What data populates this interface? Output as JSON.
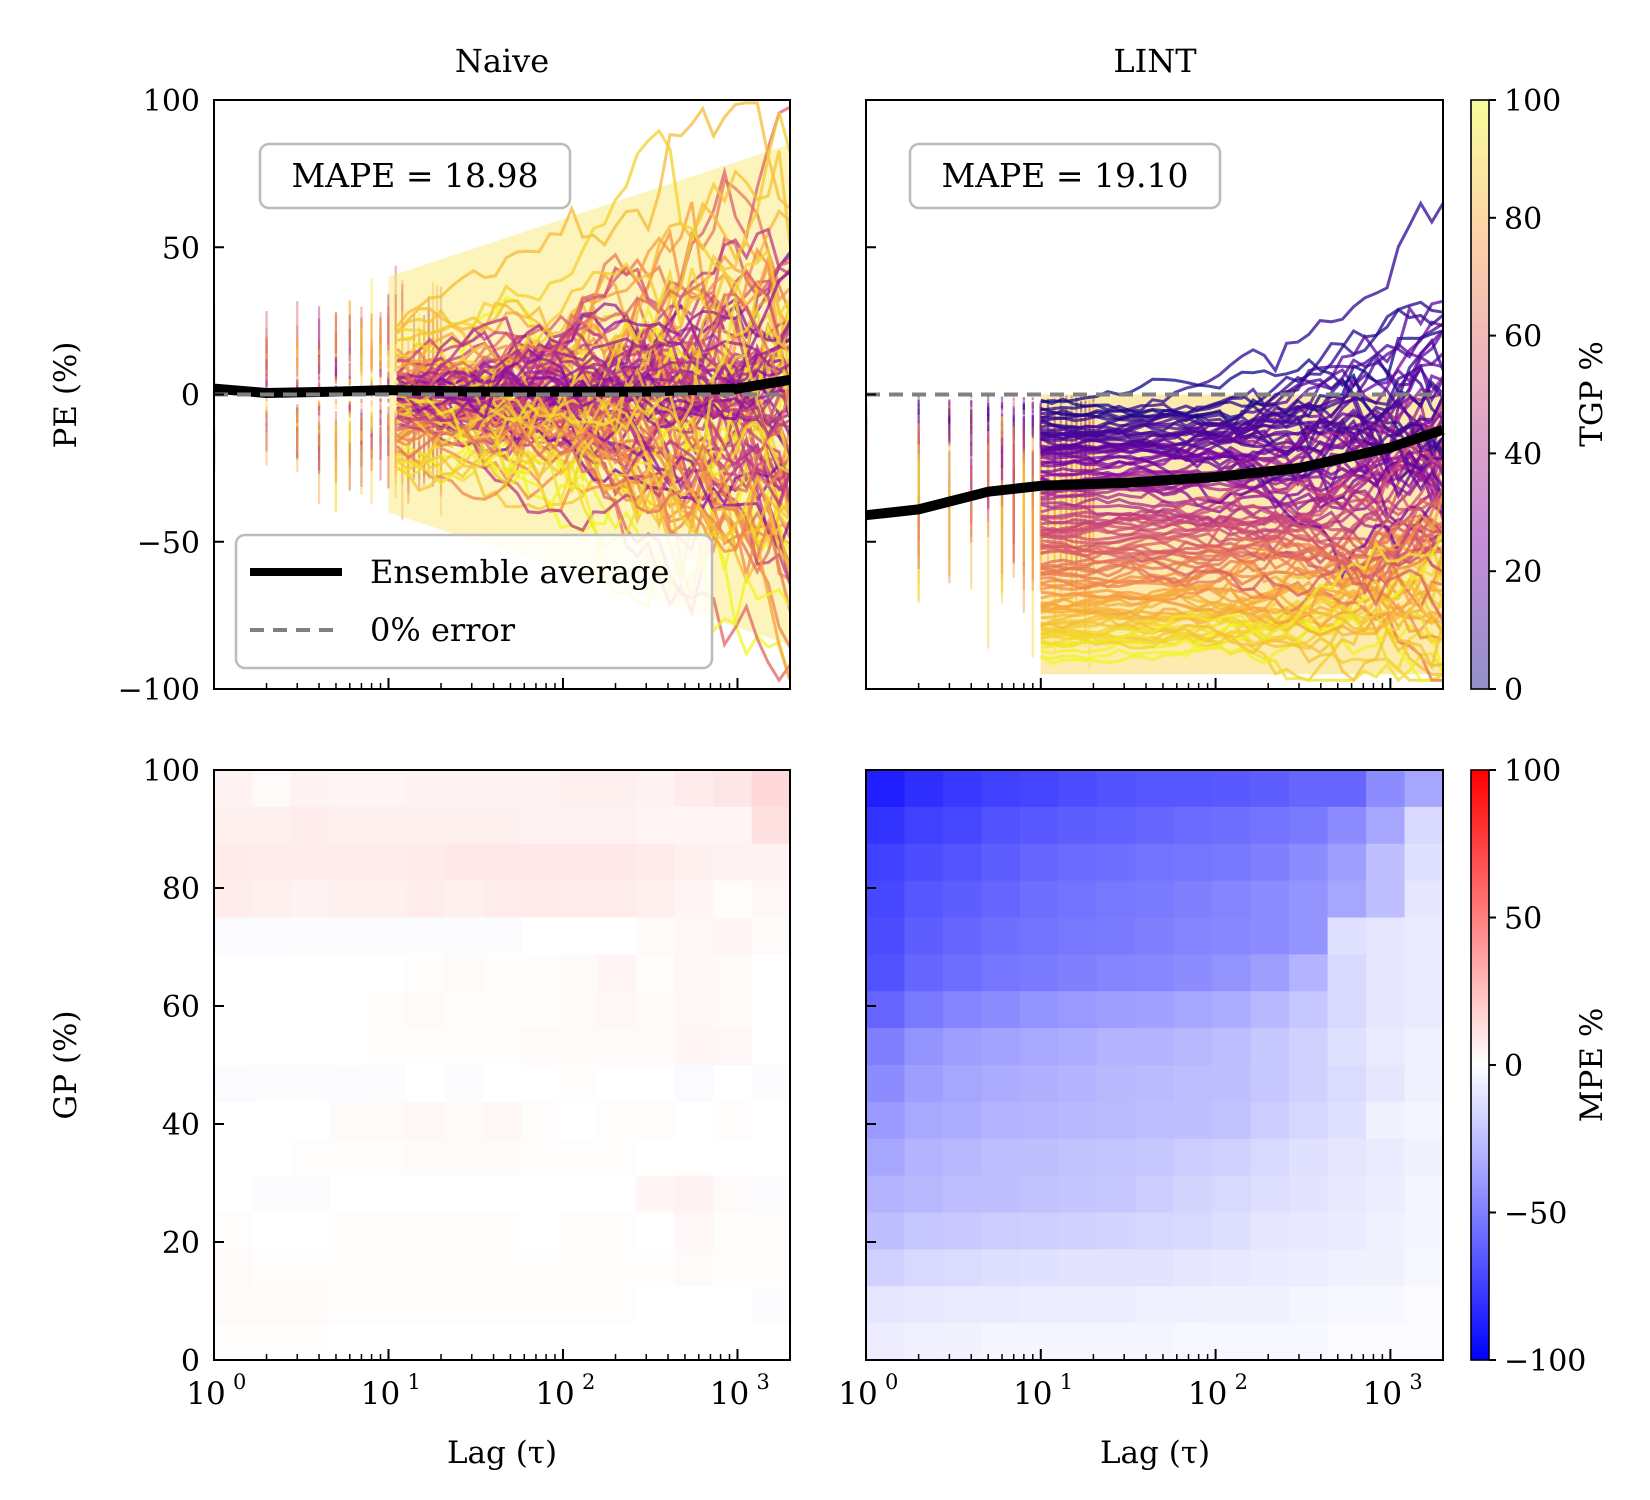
{
  "chart_data": [
    {
      "id": "naive-pe",
      "type": "scatter",
      "title": "Naive",
      "xlabel": "",
      "ylabel": "PE (%)",
      "xscale": "log",
      "xlim": [
        1,
        2000
      ],
      "ylim": [
        -100,
        100
      ],
      "yticks": [
        100,
        50,
        0,
        -50,
        -100
      ],
      "ytick_labels": [
        "100",
        "50",
        "0",
        "−50",
        "−100"
      ],
      "annotation": "MAPE = 18.98",
      "ensemble_average": [
        [
          1,
          2
        ],
        [
          2,
          0.5
        ],
        [
          5,
          1
        ],
        [
          10,
          1.5
        ],
        [
          30,
          1
        ],
        [
          100,
          1
        ],
        [
          300,
          1
        ],
        [
          1000,
          2
        ],
        [
          2000,
          5
        ]
      ],
      "zero_error": 0,
      "color_encoding": "TGP %",
      "legend": {
        "placement": "lower-left",
        "entries": [
          "Ensemble average",
          "0% error"
        ]
      }
    },
    {
      "id": "lint-pe",
      "type": "scatter",
      "title": "LINT",
      "xlabel": "",
      "ylabel": "",
      "xscale": "log",
      "xlim": [
        1,
        2000
      ],
      "ylim": [
        -100,
        100
      ],
      "annotation": "MAPE = 19.10",
      "ensemble_average": [
        [
          1,
          -41
        ],
        [
          2,
          -39
        ],
        [
          5,
          -33
        ],
        [
          10,
          -31
        ],
        [
          30,
          -30
        ],
        [
          100,
          -28
        ],
        [
          300,
          -25
        ],
        [
          1000,
          -18
        ],
        [
          2000,
          -12
        ]
      ],
      "zero_error": 0,
      "color_encoding": "TGP %"
    },
    {
      "id": "naive-heatmap",
      "type": "heatmap",
      "xlabel": "Lag (τ)",
      "ylabel": "GP (%)",
      "xscale": "log",
      "xlim": [
        1,
        2000
      ],
      "ylim": [
        0,
        100
      ],
      "yticks": [
        "100",
        "80",
        "60",
        "40",
        "20",
        "0"
      ],
      "xticks": [
        {
          "base": "10",
          "exp": "0"
        },
        {
          "base": "10",
          "exp": "1"
        },
        {
          "base": "10",
          "exp": "2"
        },
        {
          "base": "10",
          "exp": "3"
        }
      ],
      "rows_top_to_bottom": [
        [
          5,
          2,
          5,
          4,
          4,
          5,
          5,
          5,
          5,
          6,
          6,
          5,
          8,
          10,
          15
        ],
        [
          6,
          6,
          7,
          6,
          6,
          6,
          6,
          6,
          5,
          5,
          5,
          4,
          4,
          4,
          12
        ],
        [
          8,
          7,
          7,
          7,
          7,
          8,
          9,
          9,
          9,
          9,
          9,
          8,
          6,
          5,
          5
        ],
        [
          7,
          6,
          5,
          6,
          6,
          7,
          6,
          7,
          8,
          7,
          7,
          6,
          4,
          1,
          3
        ],
        [
          -2,
          -2,
          -1,
          -1,
          -1,
          -1,
          -1,
          -1,
          0,
          0,
          0,
          2,
          3,
          4,
          2
        ],
        [
          0,
          0,
          0,
          0,
          0,
          1,
          2,
          1,
          1,
          2,
          4,
          1,
          3,
          2,
          0
        ],
        [
          0,
          0,
          0,
          0,
          1,
          2,
          1,
          1,
          1,
          2,
          3,
          2,
          3,
          2,
          0
        ],
        [
          0,
          0,
          0,
          0,
          1,
          1,
          1,
          1,
          2,
          2,
          2,
          2,
          4,
          3,
          0
        ],
        [
          -2,
          -1,
          -1,
          -2,
          -1,
          0,
          -1,
          0,
          0,
          1,
          0,
          0,
          -2,
          0,
          -1
        ],
        [
          0,
          0,
          0,
          2,
          2,
          3,
          2,
          3,
          1,
          0,
          1,
          1,
          0,
          1,
          0
        ],
        [
          0,
          0,
          1,
          1,
          1,
          2,
          2,
          2,
          1,
          1,
          1,
          0,
          0,
          0,
          0
        ],
        [
          0,
          -1,
          -1,
          0,
          0,
          0,
          0,
          0,
          0,
          0,
          0,
          4,
          5,
          2,
          -1
        ],
        [
          1,
          0,
          0,
          1,
          1,
          1,
          1,
          1,
          0,
          1,
          1,
          0,
          3,
          1,
          1
        ],
        [
          2,
          1,
          1,
          1,
          1,
          1,
          1,
          1,
          1,
          1,
          1,
          1,
          2,
          1,
          1
        ],
        [
          2,
          2,
          2,
          1,
          1,
          1,
          1,
          1,
          1,
          1,
          1,
          0,
          0,
          0,
          -1
        ],
        [
          1,
          1,
          1,
          0,
          0,
          0,
          0,
          0,
          0,
          0,
          0,
          0,
          0,
          0,
          0
        ]
      ],
      "colorbar": "MPE %"
    },
    {
      "id": "lint-heatmap",
      "type": "heatmap",
      "xlabel": "Lag (τ)",
      "ylabel": "",
      "xscale": "log",
      "xlim": [
        1,
        2000
      ],
      "ylim": [
        0,
        100
      ],
      "xticks": [
        {
          "base": "10",
          "exp": "0"
        },
        {
          "base": "10",
          "exp": "1"
        },
        {
          "base": "10",
          "exp": "2"
        },
        {
          "base": "10",
          "exp": "3"
        }
      ],
      "rows_top_to_bottom": [
        [
          -88,
          -82,
          -78,
          -75,
          -73,
          -70,
          -68,
          -66,
          -66,
          -65,
          -63,
          -60,
          -60,
          -45,
          -35
        ],
        [
          -80,
          -75,
          -72,
          -68,
          -65,
          -63,
          -62,
          -60,
          -58,
          -57,
          -55,
          -52,
          -45,
          -35,
          -15
        ],
        [
          -75,
          -70,
          -67,
          -63,
          -60,
          -58,
          -57,
          -55,
          -54,
          -53,
          -50,
          -45,
          -38,
          -25,
          -12
        ],
        [
          -72,
          -66,
          -63,
          -60,
          -57,
          -55,
          -53,
          -52,
          -50,
          -48,
          -45,
          -42,
          -35,
          -25,
          -10
        ],
        [
          -70,
          -63,
          -60,
          -57,
          -55,
          -53,
          -52,
          -50,
          -48,
          -47,
          -45,
          -42,
          -12,
          -10,
          -8
        ],
        [
          -68,
          -60,
          -57,
          -54,
          -52,
          -50,
          -48,
          -47,
          -45,
          -42,
          -38,
          -30,
          -15,
          -10,
          -8
        ],
        [
          -60,
          -52,
          -48,
          -45,
          -42,
          -40,
          -38,
          -37,
          -35,
          -32,
          -28,
          -22,
          -15,
          -10,
          -8
        ],
        [
          -50,
          -42,
          -38,
          -36,
          -34,
          -32,
          -30,
          -30,
          -28,
          -26,
          -22,
          -18,
          -12,
          -8,
          -6
        ],
        [
          -45,
          -38,
          -35,
          -33,
          -31,
          -30,
          -28,
          -27,
          -26,
          -25,
          -22,
          -18,
          -14,
          -10,
          -6
        ],
        [
          -40,
          -34,
          -32,
          -30,
          -29,
          -28,
          -27,
          -26,
          -25,
          -24,
          -20,
          -16,
          -12,
          -5,
          -4
        ],
        [
          -35,
          -30,
          -28,
          -26,
          -25,
          -24,
          -23,
          -22,
          -20,
          -18,
          -15,
          -12,
          -10,
          -8,
          -5
        ],
        [
          -30,
          -28,
          -26,
          -25,
          -24,
          -23,
          -22,
          -20,
          -17,
          -15,
          -13,
          -11,
          -9,
          -7,
          -4
        ],
        [
          -25,
          -22,
          -21,
          -20,
          -19,
          -18,
          -17,
          -16,
          -15,
          -13,
          -10,
          -9,
          -8,
          -6,
          -4
        ],
        [
          -18,
          -15,
          -14,
          -13,
          -12,
          -11,
          -11,
          -11,
          -10,
          -9,
          -8,
          -7,
          -6,
          -5,
          -3
        ],
        [
          -10,
          -9,
          -8,
          -8,
          -7,
          -7,
          -7,
          -6,
          -6,
          -5,
          -5,
          -4,
          -3,
          -3,
          -2
        ],
        [
          -7,
          -6,
          -5,
          -4,
          -4,
          -4,
          -4,
          -4,
          -3,
          -3,
          -3,
          -3,
          -2,
          -2,
          -2
        ]
      ],
      "colorbar": "MPE %"
    }
  ],
  "colorbars": {
    "tgp": {
      "label": "TGP %",
      "range": [
        0,
        100
      ],
      "ticks": [
        "100",
        "80",
        "60",
        "40",
        "20",
        "0"
      ],
      "colormap": "plasma"
    },
    "mpe": {
      "label": "MPE %",
      "range": [
        -100,
        100
      ],
      "ticks": [
        "100",
        "50",
        "0",
        "−50",
        "−100"
      ],
      "colormap": "bwr"
    }
  }
}
